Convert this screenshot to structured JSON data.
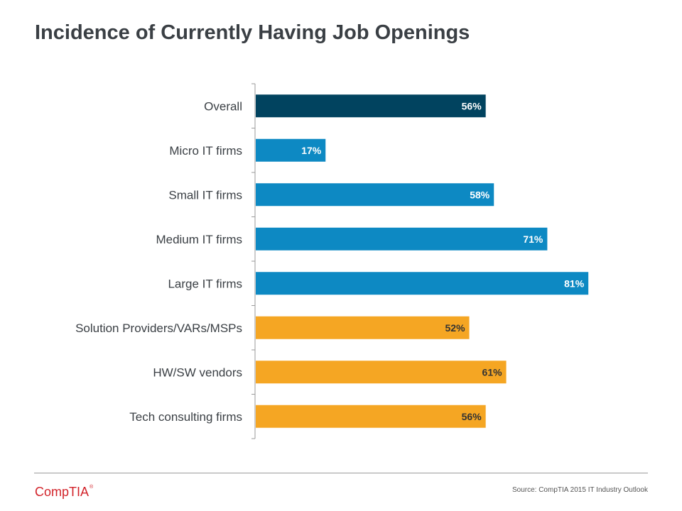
{
  "page": {
    "title": "Incidence of Currently Having Job Openings"
  },
  "chart_data": {
    "type": "bar",
    "orientation": "horizontal",
    "title": "Incidence of Currently Having Job Openings",
    "xlabel": "",
    "ylabel": "",
    "xlim": [
      0,
      100
    ],
    "grid": false,
    "categories": [
      "Overall",
      "Micro IT firms",
      "Small IT firms",
      "Medium IT firms",
      "Large IT firms",
      "Solution Providers/VARs/MSPs",
      "HW/SW vendors",
      "Tech consulting firms"
    ],
    "values": [
      56,
      17,
      58,
      71,
      81,
      52,
      61,
      56
    ],
    "value_labels": [
      "56%",
      "17%",
      "58%",
      "71%",
      "81%",
      "52%",
      "61%",
      "56%"
    ],
    "groups": [
      "overall",
      "size",
      "size",
      "size",
      "size",
      "type",
      "type",
      "type"
    ],
    "colors": {
      "overall": "#01435f",
      "size": "#0d89c3",
      "type": "#f5a623"
    },
    "label_colors": {
      "overall": "#ffffff",
      "size": "#ffffff",
      "type": "#333333"
    }
  },
  "footer": {
    "logo_text": "CompTIA",
    "logo_mark": "®",
    "source": "Source: CompTIA 2015 IT Industry Outlook"
  }
}
